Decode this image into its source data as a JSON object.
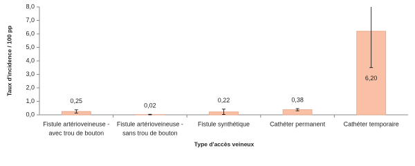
{
  "chart_data": {
    "type": "bar",
    "y_label": "Taux d'incidence / 100 pp",
    "x_label": "Type d'accès veineux",
    "categories": [
      [
        "Fistule artérioveineuse -",
        "avec trou de bouton"
      ],
      [
        "Fistule artérioveineuse -",
        "sans trou de bouton"
      ],
      [
        "Fistule synthétique"
      ],
      [
        "Cathéter permanent"
      ],
      [
        "Cathéter temporaire"
      ]
    ],
    "values": [
      0.25,
      0.02,
      0.22,
      0.38,
      6.2
    ],
    "value_labels": [
      "0,25",
      "0,02",
      "0,22",
      "0,38",
      "6,20"
    ],
    "errors": [
      0.12,
      0.02,
      0.2,
      0.08,
      2.7
    ],
    "color": "#f9c0a6",
    "edge_color": "#e9a283",
    "ylim": [
      0,
      8
    ],
    "yticks": [
      {
        "value": 0,
        "label": "0,0"
      },
      {
        "value": 1,
        "label": "1,0"
      },
      {
        "value": 2,
        "label": "2,0"
      },
      {
        "value": 3,
        "label": "3,0"
      },
      {
        "value": 4,
        "label": "4,0"
      },
      {
        "value": 5,
        "label": "5,0"
      },
      {
        "value": 6,
        "label": "6,0"
      },
      {
        "value": 7,
        "label": "7,0"
      },
      {
        "value": 8,
        "label": "8,0"
      }
    ],
    "grid": false
  }
}
